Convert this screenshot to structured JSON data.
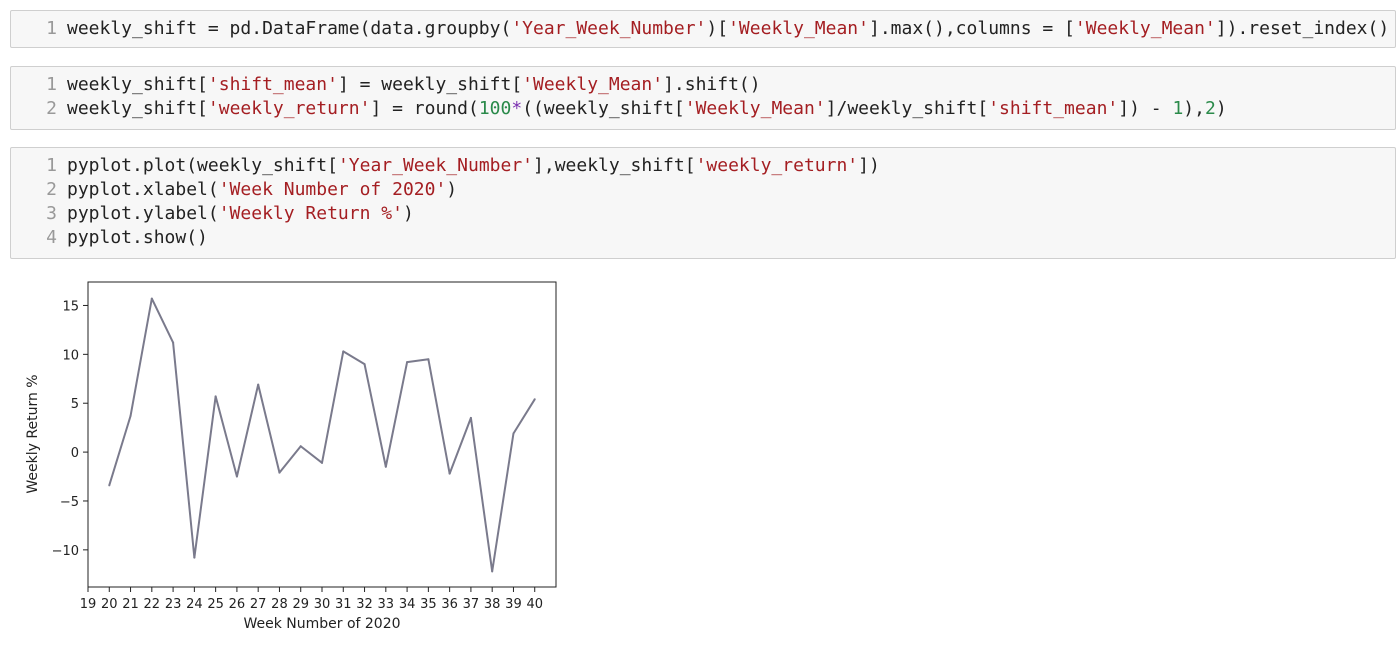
{
  "cells": [
    {
      "lines": [
        {
          "num": "1",
          "tokens": [
            {
              "t": "weekly_shift = pd.DataFrame(data.groupby(",
              "c": ""
            },
            {
              "t": "'Year_Week_Number'",
              "c": "s"
            },
            {
              "t": ")[",
              "c": ""
            },
            {
              "t": "'Weekly_Mean'",
              "c": "s"
            },
            {
              "t": "].max(),columns = [",
              "c": ""
            },
            {
              "t": "'Weekly_Mean'",
              "c": "s"
            },
            {
              "t": "]).reset_index()",
              "c": ""
            }
          ]
        }
      ]
    },
    {
      "lines": [
        {
          "num": "1",
          "tokens": [
            {
              "t": "weekly_shift[",
              "c": ""
            },
            {
              "t": "'shift_mean'",
              "c": "s"
            },
            {
              "t": "] = weekly_shift[",
              "c": ""
            },
            {
              "t": "'Weekly_Mean'",
              "c": "s"
            },
            {
              "t": "].shift()",
              "c": ""
            }
          ]
        },
        {
          "num": "2",
          "tokens": [
            {
              "t": "weekly_shift[",
              "c": ""
            },
            {
              "t": "'weekly_return'",
              "c": "s"
            },
            {
              "t": "] = round(",
              "c": ""
            },
            {
              "t": "100",
              "c": "n"
            },
            {
              "t": "*",
              "c": "o"
            },
            {
              "t": "((weekly_shift[",
              "c": ""
            },
            {
              "t": "'Weekly_Mean'",
              "c": "s"
            },
            {
              "t": "]/weekly_shift[",
              "c": ""
            },
            {
              "t": "'shift_mean'",
              "c": "s"
            },
            {
              "t": "]) - ",
              "c": ""
            },
            {
              "t": "1",
              "c": "n"
            },
            {
              "t": "),",
              "c": ""
            },
            {
              "t": "2",
              "c": "n"
            },
            {
              "t": ")",
              "c": ""
            }
          ]
        }
      ]
    },
    {
      "lines": [
        {
          "num": "1",
          "tokens": [
            {
              "t": "pyplot.plot(weekly_shift[",
              "c": ""
            },
            {
              "t": "'Year_Week_Number'",
              "c": "s"
            },
            {
              "t": "],weekly_shift[",
              "c": ""
            },
            {
              "t": "'weekly_return'",
              "c": "s"
            },
            {
              "t": "])",
              "c": ""
            }
          ]
        },
        {
          "num": "2",
          "tokens": [
            {
              "t": "pyplot.xlabel(",
              "c": ""
            },
            {
              "t": "'Week Number of 2020'",
              "c": "s"
            },
            {
              "t": ")",
              "c": ""
            }
          ]
        },
        {
          "num": "3",
          "tokens": [
            {
              "t": "pyplot.ylabel(",
              "c": ""
            },
            {
              "t": "'Weekly Return %'",
              "c": "s"
            },
            {
              "t": ")",
              "c": ""
            }
          ]
        },
        {
          "num": "4",
          "tokens": [
            {
              "t": "pyplot.show()",
              "c": ""
            }
          ]
        }
      ]
    }
  ],
  "chart_data": {
    "type": "line",
    "title": "",
    "xlabel": "Week Number of 2020",
    "ylabel": "Weekly Return %",
    "x": [
      20,
      21,
      22,
      23,
      24,
      25,
      26,
      27,
      28,
      29,
      30,
      31,
      32,
      33,
      34,
      35,
      36,
      37,
      38,
      39,
      40
    ],
    "xticks": [
      "19",
      "20",
      "21",
      "22",
      "23",
      "24",
      "25",
      "26",
      "27",
      "28",
      "29",
      "30",
      "31",
      "32",
      "33",
      "34",
      "35",
      "36",
      "37",
      "38",
      "39",
      "40"
    ],
    "yticks": [
      "15",
      "10",
      "5",
      "0",
      "−5",
      "−10"
    ],
    "ytick_values": [
      15,
      10,
      5,
      0,
      -5,
      -10
    ],
    "xlim": [
      19,
      41
    ],
    "ylim": [
      -13.8,
      17.4
    ],
    "series": [
      {
        "values": [
          -3.4,
          3.7,
          15.7,
          11.2,
          -10.8,
          5.7,
          -2.5,
          6.9,
          -2.1,
          0.6,
          -1.1,
          10.3,
          9.0,
          -1.5,
          9.2,
          9.5,
          -2.2,
          3.5,
          -12.2,
          1.9,
          5.4
        ],
        "color": "#7a7a8c"
      }
    ],
    "grid": false
  }
}
